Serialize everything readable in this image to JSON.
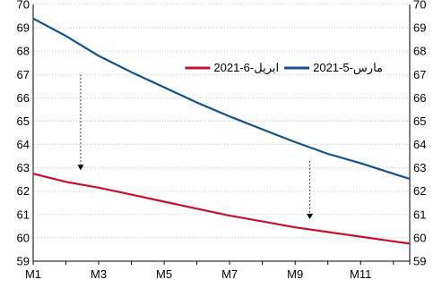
{
  "chart_data": {
    "type": "line",
    "title": "",
    "xlabel": "",
    "ylabel": "",
    "x": [
      1,
      2,
      3,
      4,
      5,
      6,
      7,
      8,
      9,
      10,
      11,
      12
    ],
    "x_tick_labels": [
      "M1",
      "M3",
      "M5",
      "M7",
      "M9",
      "M11"
    ],
    "x_tick_values": [
      1,
      3,
      5,
      7,
      9,
      11
    ],
    "ylim": [
      59,
      70
    ],
    "y_ticks": [
      59,
      60,
      61,
      62,
      63,
      64,
      65,
      66,
      67,
      68,
      69,
      70
    ],
    "y_axis": "both",
    "grid": "horizontal-dotted",
    "legend_position": "top-right",
    "series": [
      {
        "name": "2021-مارس-5",
        "color": "#10528C",
        "values": [
          69.4,
          68.65,
          67.8,
          67.1,
          66.45,
          65.8,
          65.2,
          64.65,
          64.1,
          63.6,
          63.2,
          62.75
        ]
      },
      {
        "name": "2021-ابريل-6",
        "color": "#C8102E",
        "values": [
          62.75,
          62.4,
          62.15,
          61.85,
          61.55,
          61.25,
          60.95,
          60.7,
          60.45,
          60.25,
          60.05,
          59.85
        ]
      }
    ],
    "annotations": [
      {
        "type": "arrow",
        "style": "dashed",
        "x": 2.45,
        "y_from": 67.0,
        "y_to": 62.9
      },
      {
        "type": "arrow",
        "style": "dashed",
        "x": 9.45,
        "y_from": 63.3,
        "y_to": 60.8
      }
    ]
  }
}
